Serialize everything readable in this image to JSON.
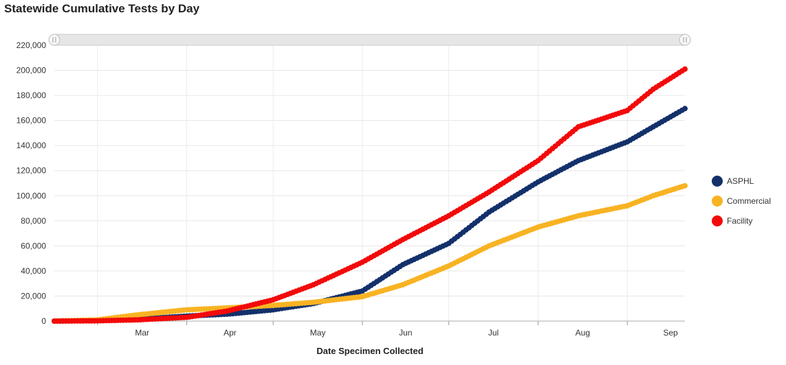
{
  "chart_data": {
    "type": "line",
    "title": "Statewide Cumulative Tests by Day",
    "xlabel": "Date Specimen Collected",
    "ylabel": "",
    "ylim": [
      0,
      220000
    ],
    "yticks": [
      0,
      20000,
      40000,
      60000,
      80000,
      100000,
      120000,
      140000,
      160000,
      180000,
      200000,
      220000
    ],
    "ytick_labels": [
      "0",
      "20,000",
      "40,000",
      "60,000",
      "80,000",
      "100,000",
      "120,000",
      "140,000",
      "160,000",
      "180,000",
      "200,000",
      "220,000"
    ],
    "x_start": "2020-02-15",
    "x_end": "2020-09-21",
    "month_labels": [
      {
        "label": "Mar",
        "date": "2020-03-01"
      },
      {
        "label": "Apr",
        "date": "2020-04-01"
      },
      {
        "label": "May",
        "date": "2020-05-01"
      },
      {
        "label": "Jun",
        "date": "2020-06-01"
      },
      {
        "label": "Jul",
        "date": "2020-07-01"
      },
      {
        "label": "Aug",
        "date": "2020-08-01"
      },
      {
        "label": "Sep",
        "date": "2020-09-01"
      }
    ],
    "series": [
      {
        "name": "ASPHL",
        "color": "#13306b",
        "points": [
          [
            "2020-02-15",
            0
          ],
          [
            "2020-03-01",
            500
          ],
          [
            "2020-03-15",
            1500
          ],
          [
            "2020-04-01",
            4000
          ],
          [
            "2020-04-15",
            5500
          ],
          [
            "2020-05-01",
            9000
          ],
          [
            "2020-05-15",
            14000
          ],
          [
            "2020-06-01",
            24000
          ],
          [
            "2020-06-15",
            45000
          ],
          [
            "2020-07-01",
            62000
          ],
          [
            "2020-07-15",
            87000
          ],
          [
            "2020-08-01",
            111000
          ],
          [
            "2020-08-15",
            128000
          ],
          [
            "2020-09-01",
            143000
          ],
          [
            "2020-09-10",
            155000
          ],
          [
            "2020-09-21",
            169500
          ]
        ]
      },
      {
        "name": "Commercial",
        "color": "#f8b323",
        "points": [
          [
            "2020-02-15",
            0
          ],
          [
            "2020-03-01",
            1000
          ],
          [
            "2020-03-15",
            5000
          ],
          [
            "2020-04-01",
            9000
          ],
          [
            "2020-04-15",
            10500
          ],
          [
            "2020-05-01",
            12500
          ],
          [
            "2020-05-15",
            15000
          ],
          [
            "2020-06-01",
            19500
          ],
          [
            "2020-06-15",
            29000
          ],
          [
            "2020-07-01",
            44000
          ],
          [
            "2020-07-15",
            60000
          ],
          [
            "2020-08-01",
            75000
          ],
          [
            "2020-08-15",
            84000
          ],
          [
            "2020-09-01",
            92000
          ],
          [
            "2020-09-10",
            100000
          ],
          [
            "2020-09-21",
            108000
          ]
        ]
      },
      {
        "name": "Facility",
        "color": "#f20a0a",
        "points": [
          [
            "2020-02-15",
            0
          ],
          [
            "2020-03-01",
            200
          ],
          [
            "2020-03-15",
            1000
          ],
          [
            "2020-04-01",
            3000
          ],
          [
            "2020-04-15",
            8000
          ],
          [
            "2020-05-01",
            17000
          ],
          [
            "2020-05-15",
            29000
          ],
          [
            "2020-06-01",
            47000
          ],
          [
            "2020-06-15",
            65000
          ],
          [
            "2020-07-01",
            84000
          ],
          [
            "2020-07-15",
            103000
          ],
          [
            "2020-08-01",
            128000
          ],
          [
            "2020-08-15",
            155000
          ],
          [
            "2020-09-01",
            168000
          ],
          [
            "2020-09-10",
            185000
          ],
          [
            "2020-09-21",
            201000
          ]
        ]
      }
    ],
    "legend_position": "right"
  },
  "legend": [
    {
      "label": "ASPHL",
      "color": "#13306b"
    },
    {
      "label": "Commercial",
      "color": "#f8b323"
    },
    {
      "label": "Facility",
      "color": "#f20a0a"
    }
  ]
}
